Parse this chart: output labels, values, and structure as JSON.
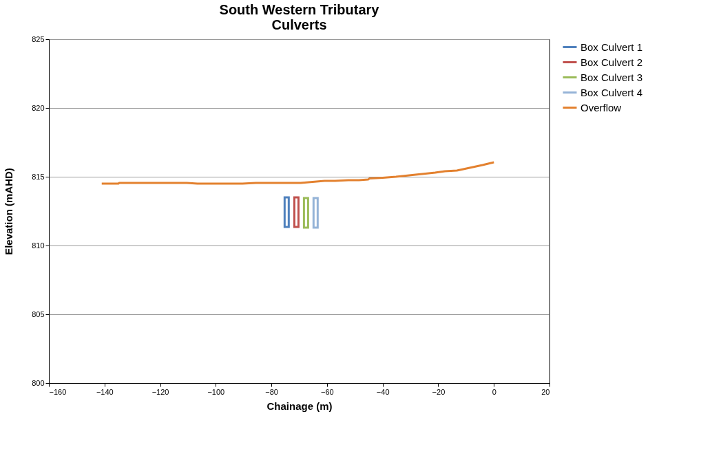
{
  "chart_data": {
    "type": "line",
    "title": "South Western Tributary\nCulverts",
    "xlabel": "Chainage (m)",
    "ylabel": "Elevation (mAHD)",
    "xlim": [
      -160,
      20
    ],
    "xticks": [
      -160,
      -140,
      -120,
      -100,
      -80,
      -60,
      -40,
      -20,
      0,
      20
    ],
    "ylim": [
      800,
      825
    ],
    "yticks": [
      800,
      805,
      810,
      815,
      820,
      825
    ],
    "grid": "y",
    "legend": "right",
    "marker": "none",
    "line_style": "solid",
    "series": [
      {
        "name": "Box Culvert 1",
        "color": "#4f81bd",
        "type": "bar",
        "x": [
          -74.5
        ],
        "base": [
          811.35
        ],
        "values": [
          2.15
        ]
      },
      {
        "name": "Box Culvert 2",
        "color": "#c0504d",
        "type": "bar",
        "x": [
          -71.0
        ],
        "base": [
          811.35
        ],
        "values": [
          2.15
        ]
      },
      {
        "name": "Box Culvert 3",
        "color": "#9bbb59",
        "type": "bar",
        "x": [
          -67.55
        ],
        "base": [
          811.3
        ],
        "values": [
          2.15
        ]
      },
      {
        "name": "Box Culvert 4",
        "color": "#95b3d7",
        "type": "bar",
        "x": [
          -64.1
        ],
        "base": [
          811.3
        ],
        "values": [
          2.15
        ]
      },
      {
        "name": "Overflow",
        "color": "#e3812f",
        "x": [
          -141,
          -135,
          -134.7,
          -110.4,
          -106.6,
          -90.4,
          -85.6,
          -69.5,
          -60.9,
          -57.1,
          -52.3,
          -48.5,
          -45.2,
          -44.7,
          -40,
          -35.2,
          -21.1,
          -17.6,
          -13.3,
          -4.1,
          0
        ],
        "values": [
          814.5,
          814.5,
          814.55,
          814.55,
          814.5,
          814.5,
          814.55,
          814.55,
          814.7,
          814.7,
          814.75,
          814.75,
          814.8,
          814.87,
          814.92,
          815.0,
          815.3,
          815.4,
          815.45,
          815.85,
          816.05
        ]
      }
    ]
  }
}
